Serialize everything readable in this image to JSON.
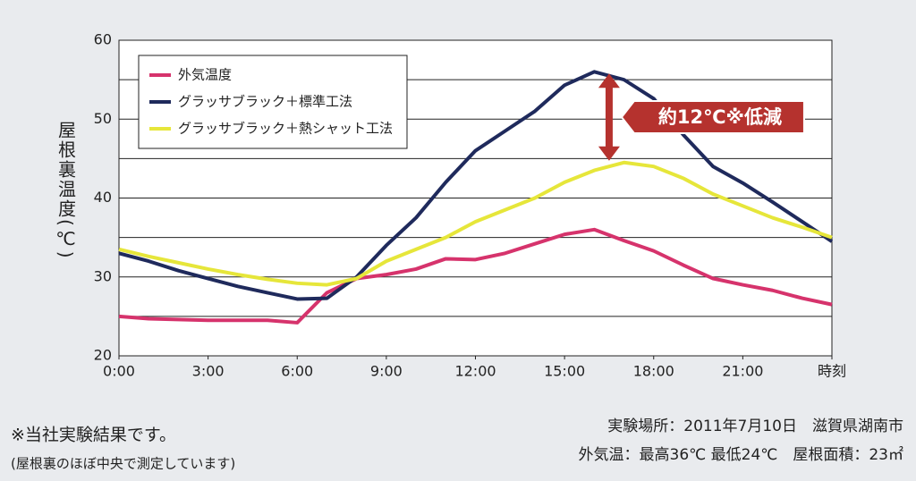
{
  "chart_data": {
    "type": "line",
    "y_label": "屋根裏温度(℃)",
    "x": [
      0,
      1,
      2,
      3,
      4,
      5,
      6,
      7,
      8,
      9,
      10,
      11,
      12,
      13,
      14,
      15,
      16,
      17,
      18,
      19,
      20,
      21,
      22,
      23,
      24
    ],
    "series": [
      {
        "name": "外気温度",
        "color": "#d6336c",
        "values": [
          25,
          24.7,
          24.6,
          24.5,
          24.5,
          24.5,
          24.2,
          28,
          29.8,
          30.3,
          31,
          32.3,
          32.2,
          33,
          34.2,
          35.4,
          36,
          34.6,
          33.3,
          31.5,
          29.8,
          29,
          28.3,
          27.3,
          26.5
        ]
      },
      {
        "name": "グラッサブラック＋標準工法",
        "color": "#1f2a5c",
        "values": [
          33,
          32,
          30.8,
          29.8,
          28.8,
          28,
          27.2,
          27.3,
          30,
          34,
          37.5,
          42,
          46,
          48.5,
          51,
          54.3,
          56,
          55,
          52.6,
          48,
          44,
          41.9,
          39.5,
          37,
          34.5
        ]
      },
      {
        "name": "グラッサブラック＋熱シャット工法",
        "color": "#e6e63a",
        "values": [
          33.5,
          32.6,
          31.8,
          31,
          30.3,
          29.7,
          29.2,
          29,
          29.8,
          32,
          33.5,
          35,
          37,
          38.5,
          40,
          42,
          43.5,
          44.5,
          44,
          42.5,
          40.5,
          39,
          37.5,
          36.3,
          35
        ]
      }
    ],
    "xlim": [
      0,
      24
    ],
    "xticks": [
      {
        "value": 0,
        "label": "0:00"
      },
      {
        "value": 3,
        "label": "3:00"
      },
      {
        "value": 6,
        "label": "6:00"
      },
      {
        "value": 9,
        "label": "9:00"
      },
      {
        "value": 12,
        "label": "12:00"
      },
      {
        "value": 15,
        "label": "15:00"
      },
      {
        "value": 18,
        "label": "18:00"
      },
      {
        "value": 21,
        "label": "21:00"
      },
      {
        "value": 24,
        "label": "時刻"
      }
    ],
    "ylim": [
      20,
      60
    ],
    "yticks": [
      20,
      30,
      40,
      50,
      60
    ],
    "minor_yticks": [
      25,
      35,
      45,
      55
    ],
    "grid": true,
    "legend": "upper left",
    "annotation": {
      "text": "約12℃※低減",
      "x": 16.5,
      "from": 44.5,
      "to": 56,
      "color": "#b5322e"
    }
  },
  "notes": {
    "left": [
      "※当社実験結果です。",
      "(屋根裏のほぼ中央で測定しています)"
    ],
    "right": [
      "実験場所：2011年7月10日　滋賀県湖南市",
      "外気温：最高36℃ 最低24℃　屋根面積：23㎡"
    ]
  }
}
